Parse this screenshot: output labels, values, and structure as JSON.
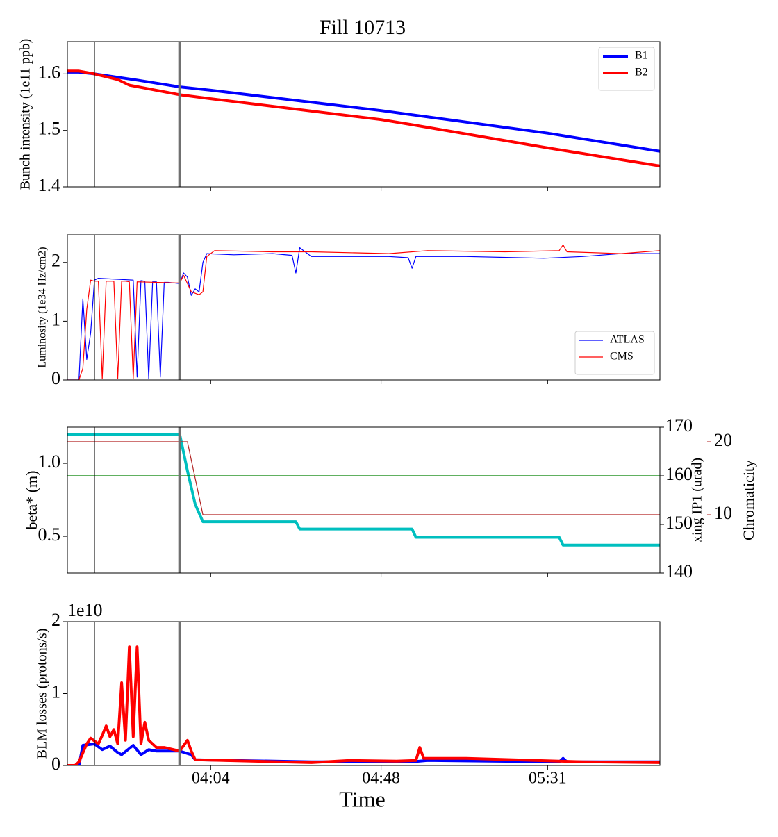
{
  "figure_title": "Fill 10713",
  "chart_data": [
    {
      "type": "line",
      "ylabel": "Bunch intensity (1e11 ppb)",
      "xlim": [
        "03:27",
        "06:00"
      ],
      "xticks": [
        "04:04",
        "04:48",
        "05:31"
      ],
      "ylim": [
        1.4,
        1.657
      ],
      "yticks": [
        1.4,
        1.5,
        1.6
      ],
      "legend": "upper right",
      "vlines": [
        {
          "x": "03:34",
          "color": "#000000",
          "width": 1
        },
        {
          "x": "03:56",
          "color": "#707070",
          "width": 4
        }
      ],
      "series": [
        {
          "name": "B1",
          "color": "#0000ff",
          "width": 4,
          "x": [
            "03:27",
            "03:30",
            "03:34",
            "03:45",
            "03:56",
            "04:04",
            "04:48",
            "05:31",
            "06:00"
          ],
          "values": [
            1.603,
            1.603,
            1.6,
            1.589,
            1.577,
            1.571,
            1.535,
            1.495,
            1.463
          ]
        },
        {
          "name": "B2",
          "color": "#ff0000",
          "width": 4,
          "x": [
            "03:27",
            "03:30",
            "03:34",
            "03:40",
            "03:43",
            "03:56",
            "04:04",
            "04:48",
            "04:56",
            "05:31",
            "06:00"
          ],
          "values": [
            1.605,
            1.605,
            1.6,
            1.59,
            1.58,
            1.563,
            1.556,
            1.519,
            1.51,
            1.469,
            1.437
          ]
        }
      ]
    },
    {
      "type": "line",
      "ylabel": "Luminosity (1e34 Hz/cm2)",
      "xlim": [
        "03:27",
        "06:00"
      ],
      "xticks": [
        "04:04",
        "04:48",
        "05:31"
      ],
      "ylim": [
        0,
        2.47
      ],
      "yticks": [
        0,
        1,
        2
      ],
      "legend": "lower right",
      "vlines": [
        {
          "x": "03:34",
          "color": "#000000",
          "width": 1
        },
        {
          "x": "03:56",
          "color": "#707070",
          "width": 4
        }
      ],
      "series": [
        {
          "name": "ATLAS",
          "color": "#0000ff",
          "width": 1.2,
          "x": [
            "03:27",
            "03:30",
            "03:31",
            "03:32",
            "03:33",
            "03:34",
            "03:35",
            "03:44",
            "03:45",
            "03:46",
            "03:47",
            "03:48",
            "03:49",
            "03:50",
            "03:51",
            "03:52",
            "03:53",
            "03:56",
            "03:57",
            "03:58",
            "03:59",
            "04:00",
            "04:01",
            "04:02",
            "04:03",
            "04:10",
            "04:20",
            "04:25",
            "04:26",
            "04:27",
            "04:30",
            "04:50",
            "04:55",
            "04:56",
            "04:57",
            "05:10",
            "05:30",
            "05:40",
            "05:50",
            "06:00"
          ],
          "values": [
            0,
            0,
            1.38,
            0.35,
            0.8,
            1.7,
            1.73,
            1.7,
            0.05,
            1.69,
            1.68,
            0.02,
            1.67,
            1.67,
            0.05,
            1.66,
            1.66,
            1.64,
            1.82,
            1.75,
            1.44,
            1.55,
            1.5,
            2.0,
            2.15,
            2.13,
            2.15,
            2.12,
            1.82,
            2.25,
            2.1,
            2.1,
            2.08,
            1.9,
            2.1,
            2.1,
            2.07,
            2.1,
            2.15,
            2.15
          ]
        },
        {
          "name": "CMS",
          "color": "#ff0000",
          "width": 1.2,
          "x": [
            "03:27",
            "03:30",
            "03:31",
            "03:32",
            "03:33",
            "03:34",
            "03:35",
            "03:36",
            "03:37",
            "03:38",
            "03:39",
            "03:40",
            "03:41",
            "03:42",
            "03:43",
            "03:44",
            "03:45",
            "03:56",
            "03:57",
            "03:59",
            "04:01",
            "04:02",
            "04:03",
            "04:05",
            "04:20",
            "04:30",
            "04:50",
            "05:00",
            "05:20",
            "05:34",
            "05:35",
            "05:36",
            "05:50",
            "06:00"
          ],
          "values": [
            0,
            0,
            0.2,
            1.2,
            1.7,
            1.68,
            1.68,
            0.02,
            1.68,
            1.68,
            1.68,
            0.02,
            1.68,
            1.68,
            1.67,
            0.02,
            1.67,
            1.65,
            1.78,
            1.5,
            1.45,
            1.5,
            2.1,
            2.2,
            2.18,
            2.18,
            2.15,
            2.2,
            2.18,
            2.2,
            2.3,
            2.18,
            2.15,
            2.2
          ]
        }
      ]
    },
    {
      "type": "line",
      "ylabel": "beta* (m)",
      "y2label": "xing IP1 (urad)",
      "y3label": "Chromaticity",
      "ycolor": "#00bfbf",
      "y2color": "#008000",
      "y3color": "#b22222",
      "xlim": [
        "03:27",
        "06:00"
      ],
      "xticks": [
        "04:04",
        "04:48",
        "05:31"
      ],
      "ylim": [
        0.248,
        1.248
      ],
      "yticks": [
        0.5,
        {
          "value": 1,
          "label": "1.0"
        }
      ],
      "y2lim": [
        140,
        170
      ],
      "y2ticks": [
        140,
        150,
        160,
        170
      ],
      "y3lim": [
        2,
        22
      ],
      "y3ticks": [
        10,
        20
      ],
      "vlines": [
        {
          "x": "03:34",
          "color": "#000000",
          "width": 1
        },
        {
          "x": "03:56",
          "color": "#707070",
          "width": 4
        }
      ],
      "series": [
        {
          "color": "#00bfbf",
          "width": 4,
          "axis": "y",
          "x": [
            "03:27",
            "03:56",
            "03:58",
            "04:00",
            "04:02",
            "04:26",
            "04:27",
            "04:56",
            "04:57",
            "05:34",
            "05:35",
            "06:00"
          ],
          "values": [
            1.2,
            1.2,
            0.95,
            0.72,
            0.6,
            0.6,
            0.55,
            0.55,
            0.493,
            0.493,
            0.44,
            0.44
          ]
        },
        {
          "color": "#008000",
          "width": 1.2,
          "axis": "y2",
          "x": [
            "03:27",
            "06:00"
          ],
          "values": [
            160,
            160
          ]
        },
        {
          "color": "#b22222",
          "width": 1.2,
          "axis": "y3",
          "x": [
            "03:27",
            "03:58",
            "04:02",
            "06:00"
          ],
          "values": [
            20,
            20,
            10,
            10
          ]
        }
      ]
    },
    {
      "type": "line",
      "ylabel": "BLM losses (protons/s)",
      "offset_label": "1e10",
      "xlabel": "Time",
      "xlim": [
        "03:27",
        "06:00"
      ],
      "xticks": [
        "04:04",
        "04:48",
        "05:31"
      ],
      "xtick_labels": true,
      "ylim": [
        0,
        2
      ],
      "yticks": [
        0,
        1,
        2
      ],
      "vlines": [
        {
          "x": "03:34",
          "color": "#000000",
          "width": 1
        },
        {
          "x": "03:56",
          "color": "#707070",
          "width": 4
        }
      ],
      "series": [
        {
          "color": "#0000ff",
          "width": 4,
          "x": [
            "03:27",
            "03:30",
            "03:31",
            "03:34",
            "03:36",
            "03:38",
            "03:40",
            "03:41",
            "03:44",
            "03:46",
            "03:48",
            "03:50",
            "03:56",
            "03:59",
            "04:00",
            "04:30",
            "04:56",
            "05:00",
            "05:34",
            "05:35",
            "05:36",
            "06:00"
          ],
          "values": [
            0,
            0,
            0.28,
            0.3,
            0.22,
            0.27,
            0.18,
            0.15,
            0.28,
            0.15,
            0.22,
            0.2,
            0.2,
            0.15,
            0.08,
            0.05,
            0.05,
            0.07,
            0.05,
            0.1,
            0.05,
            0.05
          ]
        },
        {
          "color": "#ff0000",
          "width": 4,
          "x": [
            "03:27",
            "03:29",
            "03:30",
            "03:32",
            "03:33",
            "03:35",
            "03:36",
            "03:37",
            "03:38",
            "03:39",
            "03:40",
            "03:41",
            "03:42",
            "03:43",
            "03:44",
            "03:45",
            "03:46",
            "03:47",
            "03:48",
            "03:50",
            "03:52",
            "03:56",
            "03:58",
            "03:59",
            "04:00",
            "04:30",
            "04:40",
            "04:52",
            "04:57",
            "04:58",
            "04:59",
            "05:10",
            "05:40",
            "06:00"
          ],
          "values": [
            0,
            0,
            0.05,
            0.3,
            0.38,
            0.3,
            0.42,
            0.55,
            0.4,
            0.5,
            0.3,
            1.15,
            0.35,
            1.65,
            0.4,
            1.65,
            0.3,
            0.6,
            0.35,
            0.25,
            0.25,
            0.2,
            0.35,
            0.2,
            0.08,
            0.04,
            0.07,
            0.06,
            0.07,
            0.25,
            0.1,
            0.1,
            0.05,
            0.04
          ]
        }
      ]
    }
  ]
}
